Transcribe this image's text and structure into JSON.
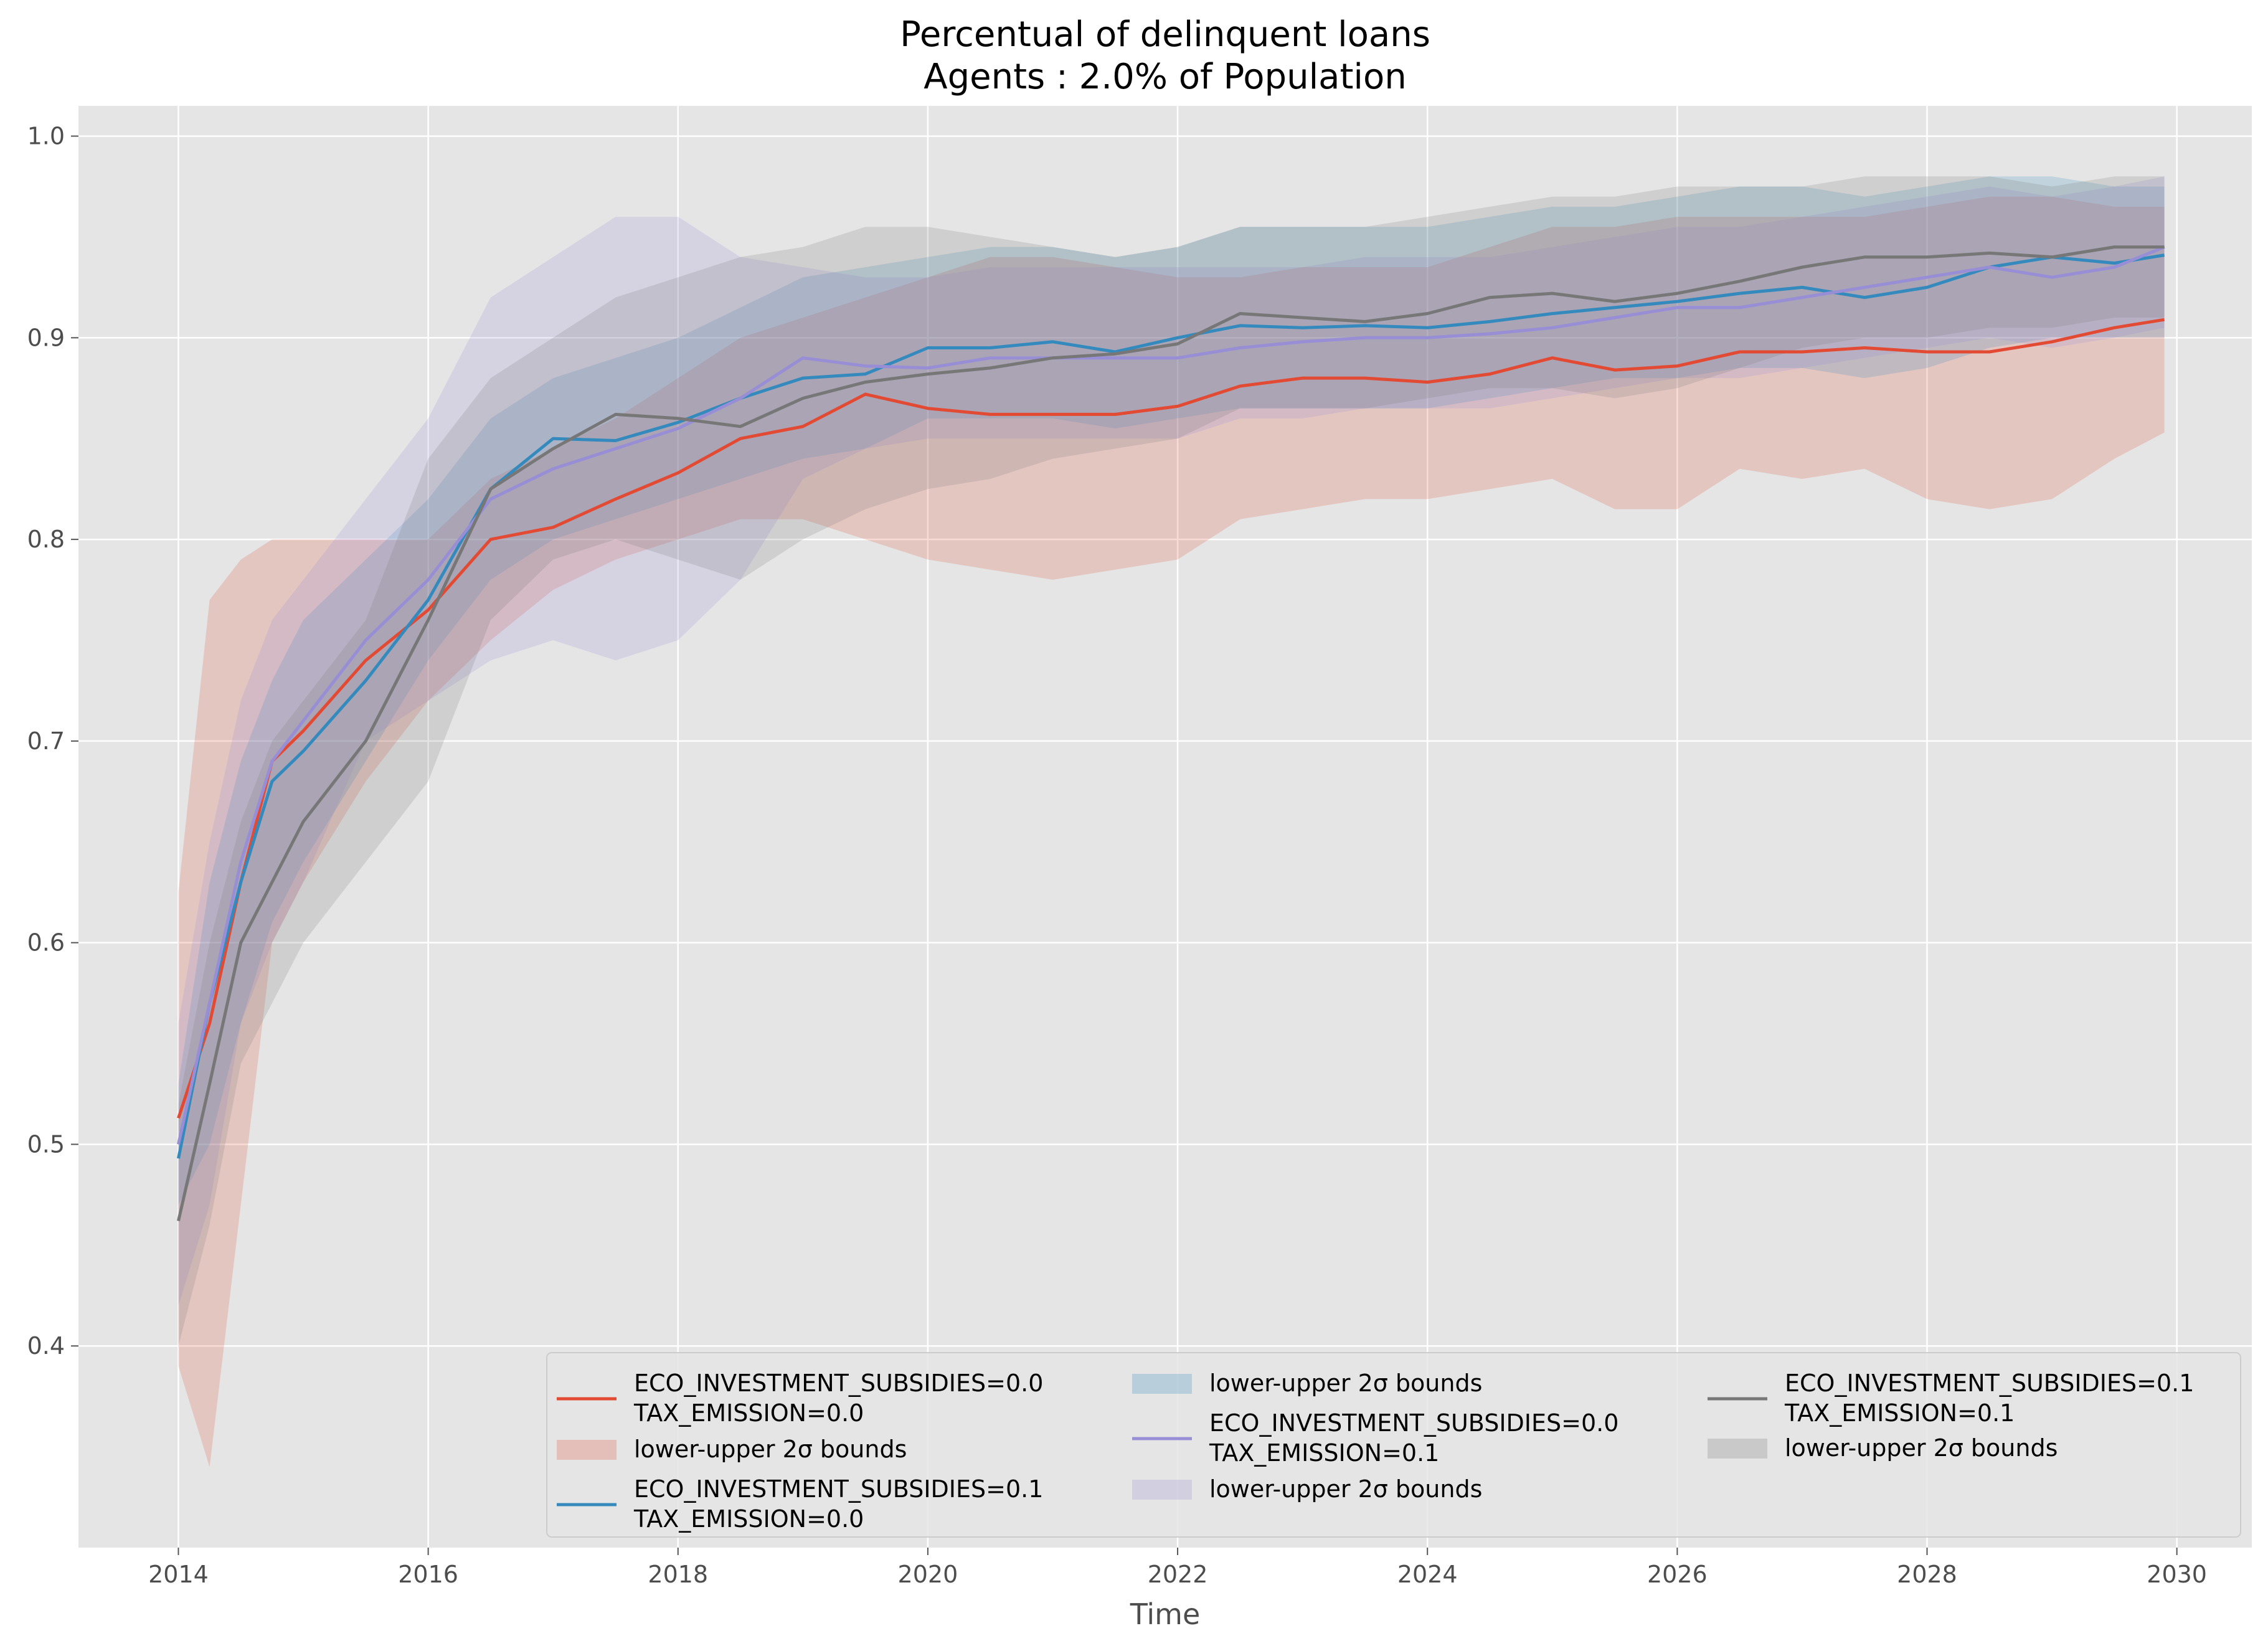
{
  "chart_data": {
    "type": "line",
    "title_line1": "Percentual of delinquent loans",
    "title_line2": "Agents : 2.0% of Population",
    "xlabel": "Time",
    "ylabel": "",
    "xlim": [
      2013.2,
      2030.6
    ],
    "ylim": [
      0.3,
      1.015
    ],
    "x_ticks": [
      2014,
      2016,
      2018,
      2020,
      2022,
      2024,
      2026,
      2028,
      2030
    ],
    "x_tick_labels": [
      "2014",
      "2016",
      "2018",
      "2020",
      "2022",
      "2024",
      "2026",
      "2028",
      "2030"
    ],
    "y_ticks": [
      0.4,
      0.5,
      0.6,
      0.7,
      0.8,
      0.9,
      1.0
    ],
    "y_tick_labels": [
      "0.4",
      "0.5",
      "0.6",
      "0.7",
      "0.8",
      "0.9",
      "1.0"
    ],
    "grid": true,
    "legend_position": "lower-right",
    "x": [
      2014.0,
      2014.25,
      2014.5,
      2014.75,
      2015.0,
      2015.5,
      2016.0,
      2016.5,
      2017.0,
      2017.5,
      2018.0,
      2018.5,
      2019.0,
      2019.5,
      2020.0,
      2020.5,
      2021.0,
      2021.5,
      2022.0,
      2022.5,
      2023.0,
      2023.5,
      2024.0,
      2024.5,
      2025.0,
      2025.5,
      2026.0,
      2026.5,
      2027.0,
      2027.5,
      2028.0,
      2028.5,
      2029.0,
      2029.5,
      2029.9
    ],
    "series": [
      {
        "name": "ECO_INVESTMENT_SUBSIDIES=0.0",
        "name_line2": "TAX_EMISSION=0.0",
        "band_label": "lower-upper 2σ bounds",
        "color": "#e24a33",
        "values": [
          0.513,
          0.56,
          0.63,
          0.69,
          0.705,
          0.74,
          0.765,
          0.8,
          0.806,
          0.82,
          0.833,
          0.85,
          0.856,
          0.872,
          0.865,
          0.862,
          0.862,
          0.862,
          0.866,
          0.876,
          0.88,
          0.88,
          0.878,
          0.882,
          0.89,
          0.884,
          0.886,
          0.893,
          0.893,
          0.895,
          0.893,
          0.893,
          0.898,
          0.905,
          0.909
        ],
        "lower": [
          0.39,
          0.34,
          0.47,
          0.6,
          0.63,
          0.68,
          0.72,
          0.75,
          0.775,
          0.79,
          0.8,
          0.81,
          0.81,
          0.8,
          0.79,
          0.785,
          0.78,
          0.785,
          0.79,
          0.81,
          0.815,
          0.82,
          0.82,
          0.825,
          0.83,
          0.815,
          0.815,
          0.835,
          0.83,
          0.835,
          0.82,
          0.815,
          0.82,
          0.84,
          0.853
        ],
        "upper": [
          0.625,
          0.77,
          0.79,
          0.8,
          0.8,
          0.8,
          0.8,
          0.83,
          0.845,
          0.86,
          0.88,
          0.9,
          0.91,
          0.92,
          0.93,
          0.94,
          0.94,
          0.935,
          0.93,
          0.93,
          0.935,
          0.935,
          0.935,
          0.945,
          0.955,
          0.955,
          0.96,
          0.96,
          0.96,
          0.96,
          0.965,
          0.97,
          0.97,
          0.965,
          0.965
        ]
      },
      {
        "name": "ECO_INVESTMENT_SUBSIDIES=0.1",
        "name_line2": "TAX_EMISSION=0.0",
        "band_label": "lower-upper 2σ bounds",
        "color": "#348abd",
        "values": [
          0.493,
          0.57,
          0.63,
          0.68,
          0.695,
          0.73,
          0.77,
          0.825,
          0.85,
          0.849,
          0.858,
          0.87,
          0.88,
          0.882,
          0.895,
          0.895,
          0.898,
          0.893,
          0.9,
          0.906,
          0.905,
          0.906,
          0.905,
          0.908,
          0.912,
          0.915,
          0.918,
          0.922,
          0.925,
          0.92,
          0.925,
          0.935,
          0.94,
          0.937,
          0.941
        ],
        "lower": [
          0.47,
          0.5,
          0.56,
          0.61,
          0.64,
          0.69,
          0.74,
          0.78,
          0.8,
          0.81,
          0.82,
          0.83,
          0.84,
          0.845,
          0.86,
          0.86,
          0.86,
          0.855,
          0.86,
          0.865,
          0.865,
          0.865,
          0.865,
          0.87,
          0.875,
          0.88,
          0.88,
          0.885,
          0.885,
          0.88,
          0.885,
          0.895,
          0.9,
          0.9,
          0.9
        ],
        "upper": [
          0.53,
          0.63,
          0.69,
          0.73,
          0.76,
          0.79,
          0.82,
          0.86,
          0.88,
          0.89,
          0.9,
          0.915,
          0.93,
          0.935,
          0.94,
          0.945,
          0.945,
          0.94,
          0.945,
          0.955,
          0.955,
          0.955,
          0.955,
          0.96,
          0.965,
          0.965,
          0.97,
          0.975,
          0.975,
          0.97,
          0.975,
          0.98,
          0.98,
          0.975,
          0.975
        ]
      },
      {
        "name": "ECO_INVESTMENT_SUBSIDIES=0.0",
        "name_line2": "TAX_EMISSION=0.1",
        "band_label": "lower-upper 2σ bounds",
        "color": "#988ed5",
        "values": [
          0.5,
          0.57,
          0.64,
          0.69,
          0.71,
          0.75,
          0.78,
          0.82,
          0.835,
          0.845,
          0.855,
          0.87,
          0.89,
          0.886,
          0.885,
          0.89,
          0.89,
          0.89,
          0.89,
          0.895,
          0.898,
          0.9,
          0.9,
          0.902,
          0.905,
          0.91,
          0.915,
          0.915,
          0.92,
          0.925,
          0.93,
          0.935,
          0.93,
          0.935,
          0.945
        ],
        "lower": [
          0.42,
          0.47,
          0.56,
          0.6,
          0.63,
          0.7,
          0.72,
          0.74,
          0.75,
          0.74,
          0.75,
          0.78,
          0.83,
          0.845,
          0.85,
          0.85,
          0.85,
          0.85,
          0.85,
          0.86,
          0.86,
          0.865,
          0.865,
          0.865,
          0.87,
          0.875,
          0.88,
          0.88,
          0.885,
          0.89,
          0.895,
          0.9,
          0.895,
          0.9,
          0.905
        ],
        "upper": [
          0.56,
          0.65,
          0.72,
          0.76,
          0.78,
          0.82,
          0.86,
          0.92,
          0.94,
          0.96,
          0.96,
          0.94,
          0.935,
          0.93,
          0.93,
          0.935,
          0.935,
          0.935,
          0.935,
          0.935,
          0.935,
          0.94,
          0.94,
          0.94,
          0.945,
          0.95,
          0.955,
          0.955,
          0.96,
          0.965,
          0.97,
          0.975,
          0.97,
          0.975,
          0.98
        ]
      },
      {
        "name": "ECO_INVESTMENT_SUBSIDIES=0.1",
        "name_line2": "TAX_EMISSION=0.1",
        "band_label": "lower-upper 2σ bounds",
        "color": "#777777",
        "values": [
          0.462,
          0.53,
          0.6,
          0.63,
          0.66,
          0.7,
          0.76,
          0.825,
          0.845,
          0.862,
          0.86,
          0.856,
          0.87,
          0.878,
          0.882,
          0.885,
          0.89,
          0.892,
          0.897,
          0.912,
          0.91,
          0.908,
          0.912,
          0.92,
          0.922,
          0.918,
          0.922,
          0.928,
          0.935,
          0.94,
          0.94,
          0.942,
          0.94,
          0.945,
          0.945
        ],
        "lower": [
          0.4,
          0.46,
          0.54,
          0.57,
          0.6,
          0.64,
          0.68,
          0.76,
          0.79,
          0.8,
          0.79,
          0.78,
          0.8,
          0.815,
          0.825,
          0.83,
          0.84,
          0.845,
          0.85,
          0.865,
          0.865,
          0.865,
          0.87,
          0.875,
          0.875,
          0.87,
          0.875,
          0.885,
          0.895,
          0.9,
          0.9,
          0.905,
          0.905,
          0.91,
          0.91
        ],
        "upper": [
          0.52,
          0.6,
          0.66,
          0.7,
          0.72,
          0.76,
          0.84,
          0.88,
          0.9,
          0.92,
          0.93,
          0.94,
          0.945,
          0.955,
          0.955,
          0.95,
          0.945,
          0.94,
          0.945,
          0.955,
          0.955,
          0.955,
          0.96,
          0.965,
          0.97,
          0.97,
          0.975,
          0.975,
          0.975,
          0.98,
          0.98,
          0.98,
          0.975,
          0.98,
          0.98
        ]
      }
    ]
  }
}
